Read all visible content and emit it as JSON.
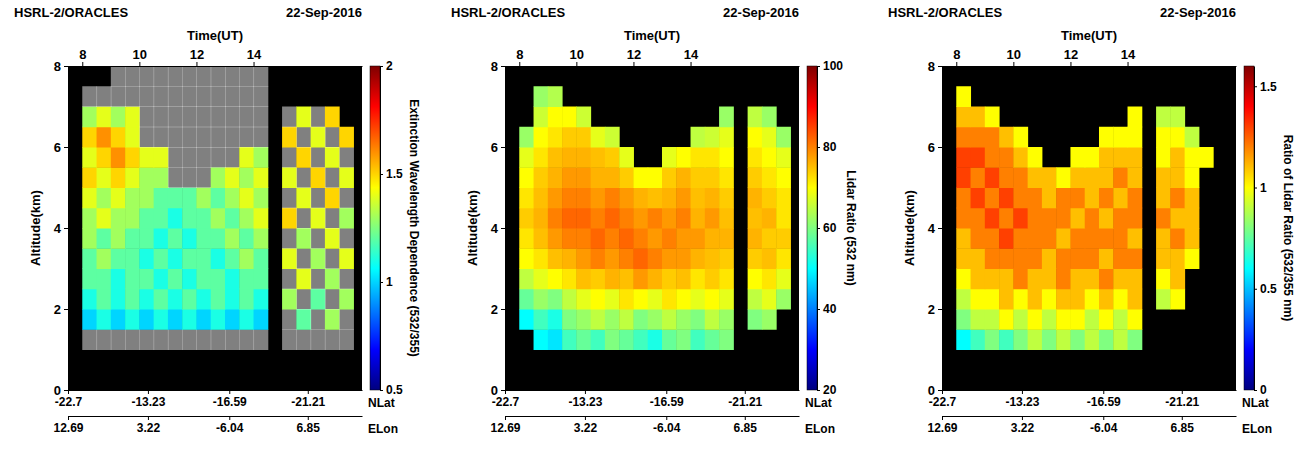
{
  "chart_data": [
    {
      "type": "heatmap",
      "title": "HSRL-2/ORACLES",
      "subtitle": "22-Sep-2016",
      "x_label": "Time(UT)",
      "y_label": "Altitude(km)",
      "xlim": [
        7.5,
        17.8
      ],
      "xticks": [
        8,
        10,
        12,
        14
      ],
      "ylim": [
        0,
        8
      ],
      "yticks": [
        0,
        2,
        4,
        6,
        8
      ],
      "x2label": "NLat",
      "x2ticks": [
        {
          "value": 7.5,
          "label": "-22.7"
        },
        {
          "value": 10.3,
          "label": "-13.23"
        },
        {
          "value": 13.15,
          "label": "-16.59"
        },
        {
          "value": 15.9,
          "label": "-21.21"
        }
      ],
      "x3label": "ELon",
      "x3ticks": [
        {
          "value": 7.5,
          "label": "12.69"
        },
        {
          "value": 10.3,
          "label": "3.22"
        },
        {
          "value": 13.15,
          "label": "-6.04"
        },
        {
          "value": 15.9,
          "label": "6.85"
        }
      ],
      "x": [
        8.25,
        8.75,
        9.25,
        9.75,
        10.25,
        10.75,
        11.25,
        11.75,
        12.25,
        12.75,
        13.25,
        13.75,
        14.25,
        14.75,
        15.25,
        15.75,
        16.25,
        16.75,
        17.25
      ],
      "y": [
        1.25,
        1.75,
        2.25,
        2.75,
        3.25,
        3.75,
        4.25,
        4.75,
        5.25,
        5.75,
        6.25,
        6.75,
        7.25,
        7.75
      ],
      "z": [
        [
          2.2,
          2.2,
          2.2,
          2.2,
          2.2,
          2.2,
          2.2,
          2.2,
          2.2,
          2.2,
          2.2,
          2.2,
          2.2,
          null,
          2.2,
          2.2,
          2.2,
          2.2,
          2.2
        ],
        [
          1.0,
          1.1,
          1.0,
          1.1,
          1.0,
          1.1,
          1.0,
          1.1,
          1.0,
          1.1,
          1.0,
          1.1,
          1.0,
          null,
          2.2,
          1.2,
          2.2,
          1.3,
          2.2
        ],
        [
          1.1,
          1.2,
          1.1,
          1.2,
          1.1,
          1.2,
          1.1,
          1.2,
          1.1,
          1.2,
          1.1,
          1.2,
          1.1,
          null,
          1.3,
          2.2,
          1.2,
          2.2,
          1.3
        ],
        [
          1.2,
          1.2,
          1.1,
          1.2,
          1.2,
          1.1,
          1.2,
          1.1,
          1.2,
          1.2,
          1.1,
          1.2,
          1.2,
          null,
          2.2,
          1.4,
          2.2,
          1.3,
          2.2
        ],
        [
          1.2,
          1.3,
          1.2,
          1.2,
          1.1,
          1.2,
          1.1,
          1.2,
          1.2,
          1.1,
          1.2,
          1.3,
          1.2,
          null,
          1.4,
          2.2,
          1.3,
          2.2,
          1.4
        ],
        [
          1.3,
          1.2,
          1.3,
          1.2,
          1.2,
          1.1,
          1.2,
          1.1,
          1.2,
          1.2,
          1.3,
          1.2,
          1.3,
          null,
          2.2,
          1.3,
          2.2,
          1.4,
          2.2
        ],
        [
          1.3,
          1.4,
          1.3,
          1.3,
          1.2,
          1.2,
          1.1,
          1.2,
          1.2,
          1.3,
          1.2,
          1.3,
          1.4,
          null,
          1.5,
          2.2,
          1.4,
          2.2,
          1.3
        ],
        [
          1.4,
          1.3,
          1.4,
          1.3,
          1.3,
          1.2,
          1.2,
          1.2,
          1.3,
          1.2,
          1.3,
          1.4,
          1.3,
          null,
          2.2,
          1.4,
          2.2,
          1.5,
          2.2
        ],
        [
          1.5,
          1.4,
          1.5,
          1.4,
          1.3,
          1.3,
          2.2,
          2.2,
          2.2,
          1.3,
          1.4,
          1.3,
          1.4,
          null,
          1.4,
          2.2,
          1.5,
          2.2,
          1.4
        ],
        [
          1.4,
          1.5,
          1.6,
          1.5,
          1.4,
          1.4,
          2.2,
          2.2,
          2.2,
          2.2,
          2.2,
          1.4,
          1.3,
          null,
          2.2,
          1.5,
          2.2,
          1.4,
          2.2
        ],
        [
          1.5,
          1.6,
          1.5,
          1.4,
          2.2,
          2.2,
          2.2,
          2.2,
          2.2,
          2.2,
          2.2,
          2.2,
          2.2,
          null,
          1.5,
          2.2,
          1.4,
          2.2,
          1.5
        ],
        [
          1.3,
          1.4,
          1.3,
          1.4,
          2.2,
          2.2,
          2.2,
          2.2,
          2.2,
          2.2,
          2.2,
          2.2,
          2.2,
          null,
          2.2,
          1.4,
          2.2,
          1.5,
          null
        ],
        [
          2.2,
          2.2,
          2.2,
          2.2,
          2.2,
          2.2,
          2.2,
          2.2,
          2.2,
          2.2,
          2.2,
          2.2,
          2.2,
          null,
          null,
          null,
          null,
          null,
          null
        ],
        [
          null,
          null,
          2.2,
          2.2,
          2.2,
          2.2,
          2.2,
          2.2,
          2.2,
          2.2,
          2.2,
          2.2,
          2.2,
          null,
          null,
          null,
          null,
          null,
          null
        ]
      ],
      "colorbar": {
        "label": "Extinction Wavelength Dependence (532/355)",
        "range": [
          0.5,
          2
        ],
        "ticks": [
          0.5,
          1,
          1.5,
          2
        ]
      }
    },
    {
      "type": "heatmap",
      "title": "HSRL-2/ORACLES",
      "subtitle": "22-Sep-2016",
      "x_label": "Time(UT)",
      "y_label": "Altitude(km)",
      "xlim": [
        7.5,
        17.8
      ],
      "xticks": [
        8,
        10,
        12,
        14
      ],
      "ylim": [
        0,
        8
      ],
      "yticks": [
        0,
        2,
        4,
        6,
        8
      ],
      "x2label": "NLat",
      "x2ticks": [
        {
          "value": 7.5,
          "label": "-22.7"
        },
        {
          "value": 10.3,
          "label": "-13.23"
        },
        {
          "value": 13.15,
          "label": "-16.59"
        },
        {
          "value": 15.9,
          "label": "-21.21"
        }
      ],
      "x3label": "ELon",
      "x3ticks": [
        {
          "value": 7.5,
          "label": "12.69"
        },
        {
          "value": 10.3,
          "label": "3.22"
        },
        {
          "value": 13.15,
          "label": "-6.04"
        },
        {
          "value": 15.9,
          "label": "6.85"
        }
      ],
      "x": [
        8.25,
        8.75,
        9.25,
        9.75,
        10.25,
        10.75,
        11.25,
        11.75,
        12.25,
        12.75,
        13.25,
        13.75,
        14.25,
        14.75,
        15.25,
        15.75,
        16.25,
        16.75,
        17.25
      ],
      "y": [
        1.25,
        1.75,
        2.25,
        2.75,
        3.25,
        3.75,
        4.25,
        4.75,
        5.25,
        5.75,
        6.25,
        6.75,
        7.25,
        7.75
      ],
      "z": [
        [
          null,
          50,
          48,
          55,
          58,
          55,
          60,
          58,
          55,
          52,
          58,
          60,
          55,
          58,
          60,
          null,
          null,
          null,
          null
        ],
        [
          50,
          55,
          52,
          60,
          62,
          65,
          62,
          65,
          60,
          62,
          65,
          62,
          60,
          65,
          62,
          null,
          60,
          62,
          null
        ],
        [
          58,
          62,
          60,
          65,
          68,
          70,
          68,
          72,
          70,
          68,
          72,
          70,
          68,
          70,
          68,
          null,
          65,
          68,
          62
        ],
        [
          65,
          68,
          70,
          72,
          75,
          74,
          76,
          75,
          78,
          76,
          74,
          75,
          72,
          74,
          72,
          null,
          70,
          72,
          68
        ],
        [
          70,
          72,
          75,
          76,
          78,
          80,
          78,
          80,
          82,
          80,
          78,
          78,
          76,
          75,
          74,
          null,
          74,
          75,
          72
        ],
        [
          72,
          75,
          78,
          80,
          80,
          82,
          80,
          82,
          80,
          78,
          80,
          78,
          78,
          76,
          76,
          null,
          76,
          74,
          74
        ],
        [
          74,
          76,
          80,
          82,
          82,
          80,
          82,
          80,
          78,
          80,
          78,
          80,
          76,
          78,
          75,
          null,
          75,
          76,
          72
        ],
        [
          72,
          75,
          78,
          80,
          80,
          78,
          80,
          78,
          76,
          75,
          76,
          78,
          75,
          76,
          74,
          null,
          76,
          74,
          72
        ],
        [
          70,
          74,
          76,
          78,
          78,
          76,
          76,
          74,
          70,
          70,
          74,
          76,
          74,
          74,
          72,
          null,
          74,
          72,
          70
        ],
        [
          68,
          72,
          75,
          76,
          76,
          75,
          74,
          68,
          null,
          null,
          68,
          70,
          72,
          72,
          70,
          null,
          72,
          70,
          68
        ],
        [
          62,
          70,
          72,
          74,
          74,
          68,
          66,
          null,
          null,
          null,
          null,
          null,
          65,
          66,
          68,
          null,
          70,
          68,
          62
        ],
        [
          null,
          66,
          70,
          70,
          66,
          null,
          null,
          null,
          null,
          null,
          null,
          null,
          null,
          null,
          62,
          null,
          65,
          62,
          null
        ],
        [
          null,
          62,
          64,
          null,
          null,
          null,
          null,
          null,
          null,
          null,
          null,
          null,
          null,
          null,
          null,
          null,
          null,
          null,
          null
        ],
        [
          null,
          null,
          null,
          null,
          null,
          null,
          null,
          null,
          null,
          null,
          null,
          null,
          null,
          null,
          null,
          null,
          null,
          null,
          null
        ]
      ],
      "colorbar": {
        "label": "Lidar Ratio (532 nm)",
        "range": [
          20,
          100
        ],
        "ticks": [
          20,
          40,
          60,
          80,
          100
        ]
      }
    },
    {
      "type": "heatmap",
      "title": "HSRL-2/ORACLES",
      "subtitle": "22-Sep-2016",
      "x_label": "Time(UT)",
      "y_label": "Altitude(km)",
      "xlim": [
        7.5,
        17.8
      ],
      "xticks": [
        8,
        10,
        12,
        14
      ],
      "ylim": [
        0,
        8
      ],
      "yticks": [
        0,
        2,
        4,
        6,
        8
      ],
      "x2label": "NLat",
      "x2ticks": [
        {
          "value": 7.5,
          "label": "-22.7"
        },
        {
          "value": 10.3,
          "label": "-13.23"
        },
        {
          "value": 13.15,
          "label": "-16.59"
        },
        {
          "value": 15.9,
          "label": "-21.21"
        }
      ],
      "x3label": "ELon",
      "x3ticks": [
        {
          "value": 7.5,
          "label": "12.69"
        },
        {
          "value": 10.3,
          "label": "3.22"
        },
        {
          "value": 13.15,
          "label": "-6.04"
        },
        {
          "value": 15.9,
          "label": "6.85"
        }
      ],
      "x": [
        8.25,
        8.75,
        9.25,
        9.75,
        10.25,
        10.75,
        11.25,
        11.75,
        12.25,
        12.75,
        13.25,
        13.75,
        14.25,
        14.75,
        15.25,
        15.75,
        16.25,
        16.75,
        17.25
      ],
      "y": [
        1.25,
        1.75,
        2.25,
        2.75,
        3.25,
        3.75,
        4.25,
        4.75,
        5.25,
        5.75,
        6.25,
        6.75,
        7.25,
        7.75
      ],
      "z": [
        [
          0.6,
          0.7,
          0.8,
          0.7,
          0.8,
          0.9,
          0.8,
          0.9,
          0.8,
          0.9,
          0.8,
          0.9,
          0.8,
          null,
          null,
          null,
          null,
          null,
          null
        ],
        [
          0.8,
          0.9,
          0.9,
          1.0,
          0.9,
          1.0,
          0.9,
          1.0,
          1.0,
          0.9,
          1.0,
          0.9,
          1.0,
          null,
          null,
          null,
          null,
          null,
          null
        ],
        [
          0.9,
          1.0,
          1.0,
          1.1,
          1.0,
          1.1,
          1.0,
          1.1,
          1.1,
          1.0,
          1.1,
          1.0,
          1.1,
          null,
          0.9,
          1.0,
          null,
          null,
          null
        ],
        [
          1.0,
          1.1,
          1.1,
          1.1,
          1.2,
          1.1,
          1.1,
          1.2,
          1.1,
          1.1,
          1.2,
          1.1,
          1.1,
          null,
          1.0,
          1.1,
          null,
          null,
          null
        ],
        [
          1.1,
          1.1,
          1.2,
          1.2,
          1.2,
          1.2,
          1.1,
          1.2,
          1.2,
          1.2,
          1.1,
          1.2,
          1.2,
          null,
          1.1,
          1.1,
          1.0,
          null,
          null
        ],
        [
          1.1,
          1.2,
          1.2,
          1.3,
          1.2,
          1.2,
          1.2,
          1.1,
          1.2,
          1.2,
          1.2,
          1.2,
          1.1,
          null,
          1.1,
          1.2,
          1.1,
          null,
          null
        ],
        [
          1.2,
          1.2,
          1.3,
          1.2,
          1.3,
          1.2,
          1.2,
          1.2,
          1.1,
          1.2,
          1.1,
          1.2,
          1.2,
          null,
          1.2,
          1.1,
          1.1,
          null,
          null
        ],
        [
          1.2,
          1.3,
          1.2,
          1.3,
          1.2,
          1.2,
          1.1,
          1.2,
          1.2,
          1.1,
          1.2,
          1.1,
          1.2,
          null,
          1.1,
          1.2,
          1.1,
          null,
          null
        ],
        [
          1.3,
          1.2,
          1.3,
          1.2,
          1.2,
          1.1,
          1.1,
          1.0,
          1.1,
          1.1,
          1.1,
          1.2,
          1.1,
          null,
          1.1,
          1.1,
          1.0,
          null,
          null
        ],
        [
          1.3,
          1.3,
          1.2,
          1.2,
          1.1,
          1.0,
          null,
          null,
          1.0,
          1.0,
          1.1,
          1.1,
          1.1,
          null,
          1.0,
          1.1,
          1.0,
          1.0,
          null
        ],
        [
          1.2,
          1.2,
          1.2,
          1.1,
          1.0,
          null,
          null,
          null,
          null,
          null,
          1.0,
          1.0,
          1.0,
          null,
          1.0,
          1.0,
          0.9,
          null,
          null
        ],
        [
          1.1,
          1.1,
          1.0,
          null,
          null,
          null,
          null,
          null,
          null,
          null,
          null,
          null,
          1.0,
          null,
          0.9,
          0.9,
          null,
          null,
          null
        ],
        [
          1.0,
          null,
          null,
          null,
          null,
          null,
          null,
          null,
          null,
          null,
          null,
          null,
          null,
          null,
          null,
          null,
          null,
          null,
          null
        ],
        [
          null,
          null,
          null,
          null,
          null,
          null,
          null,
          null,
          null,
          null,
          null,
          null,
          null,
          null,
          null,
          null,
          null,
          null,
          null
        ]
      ],
      "colorbar": {
        "label": "Ratio of Lidar Ratio (532/355 nm)",
        "range": [
          0,
          1.6
        ],
        "ticks": [
          0,
          0.5,
          1,
          1.5
        ]
      }
    }
  ]
}
